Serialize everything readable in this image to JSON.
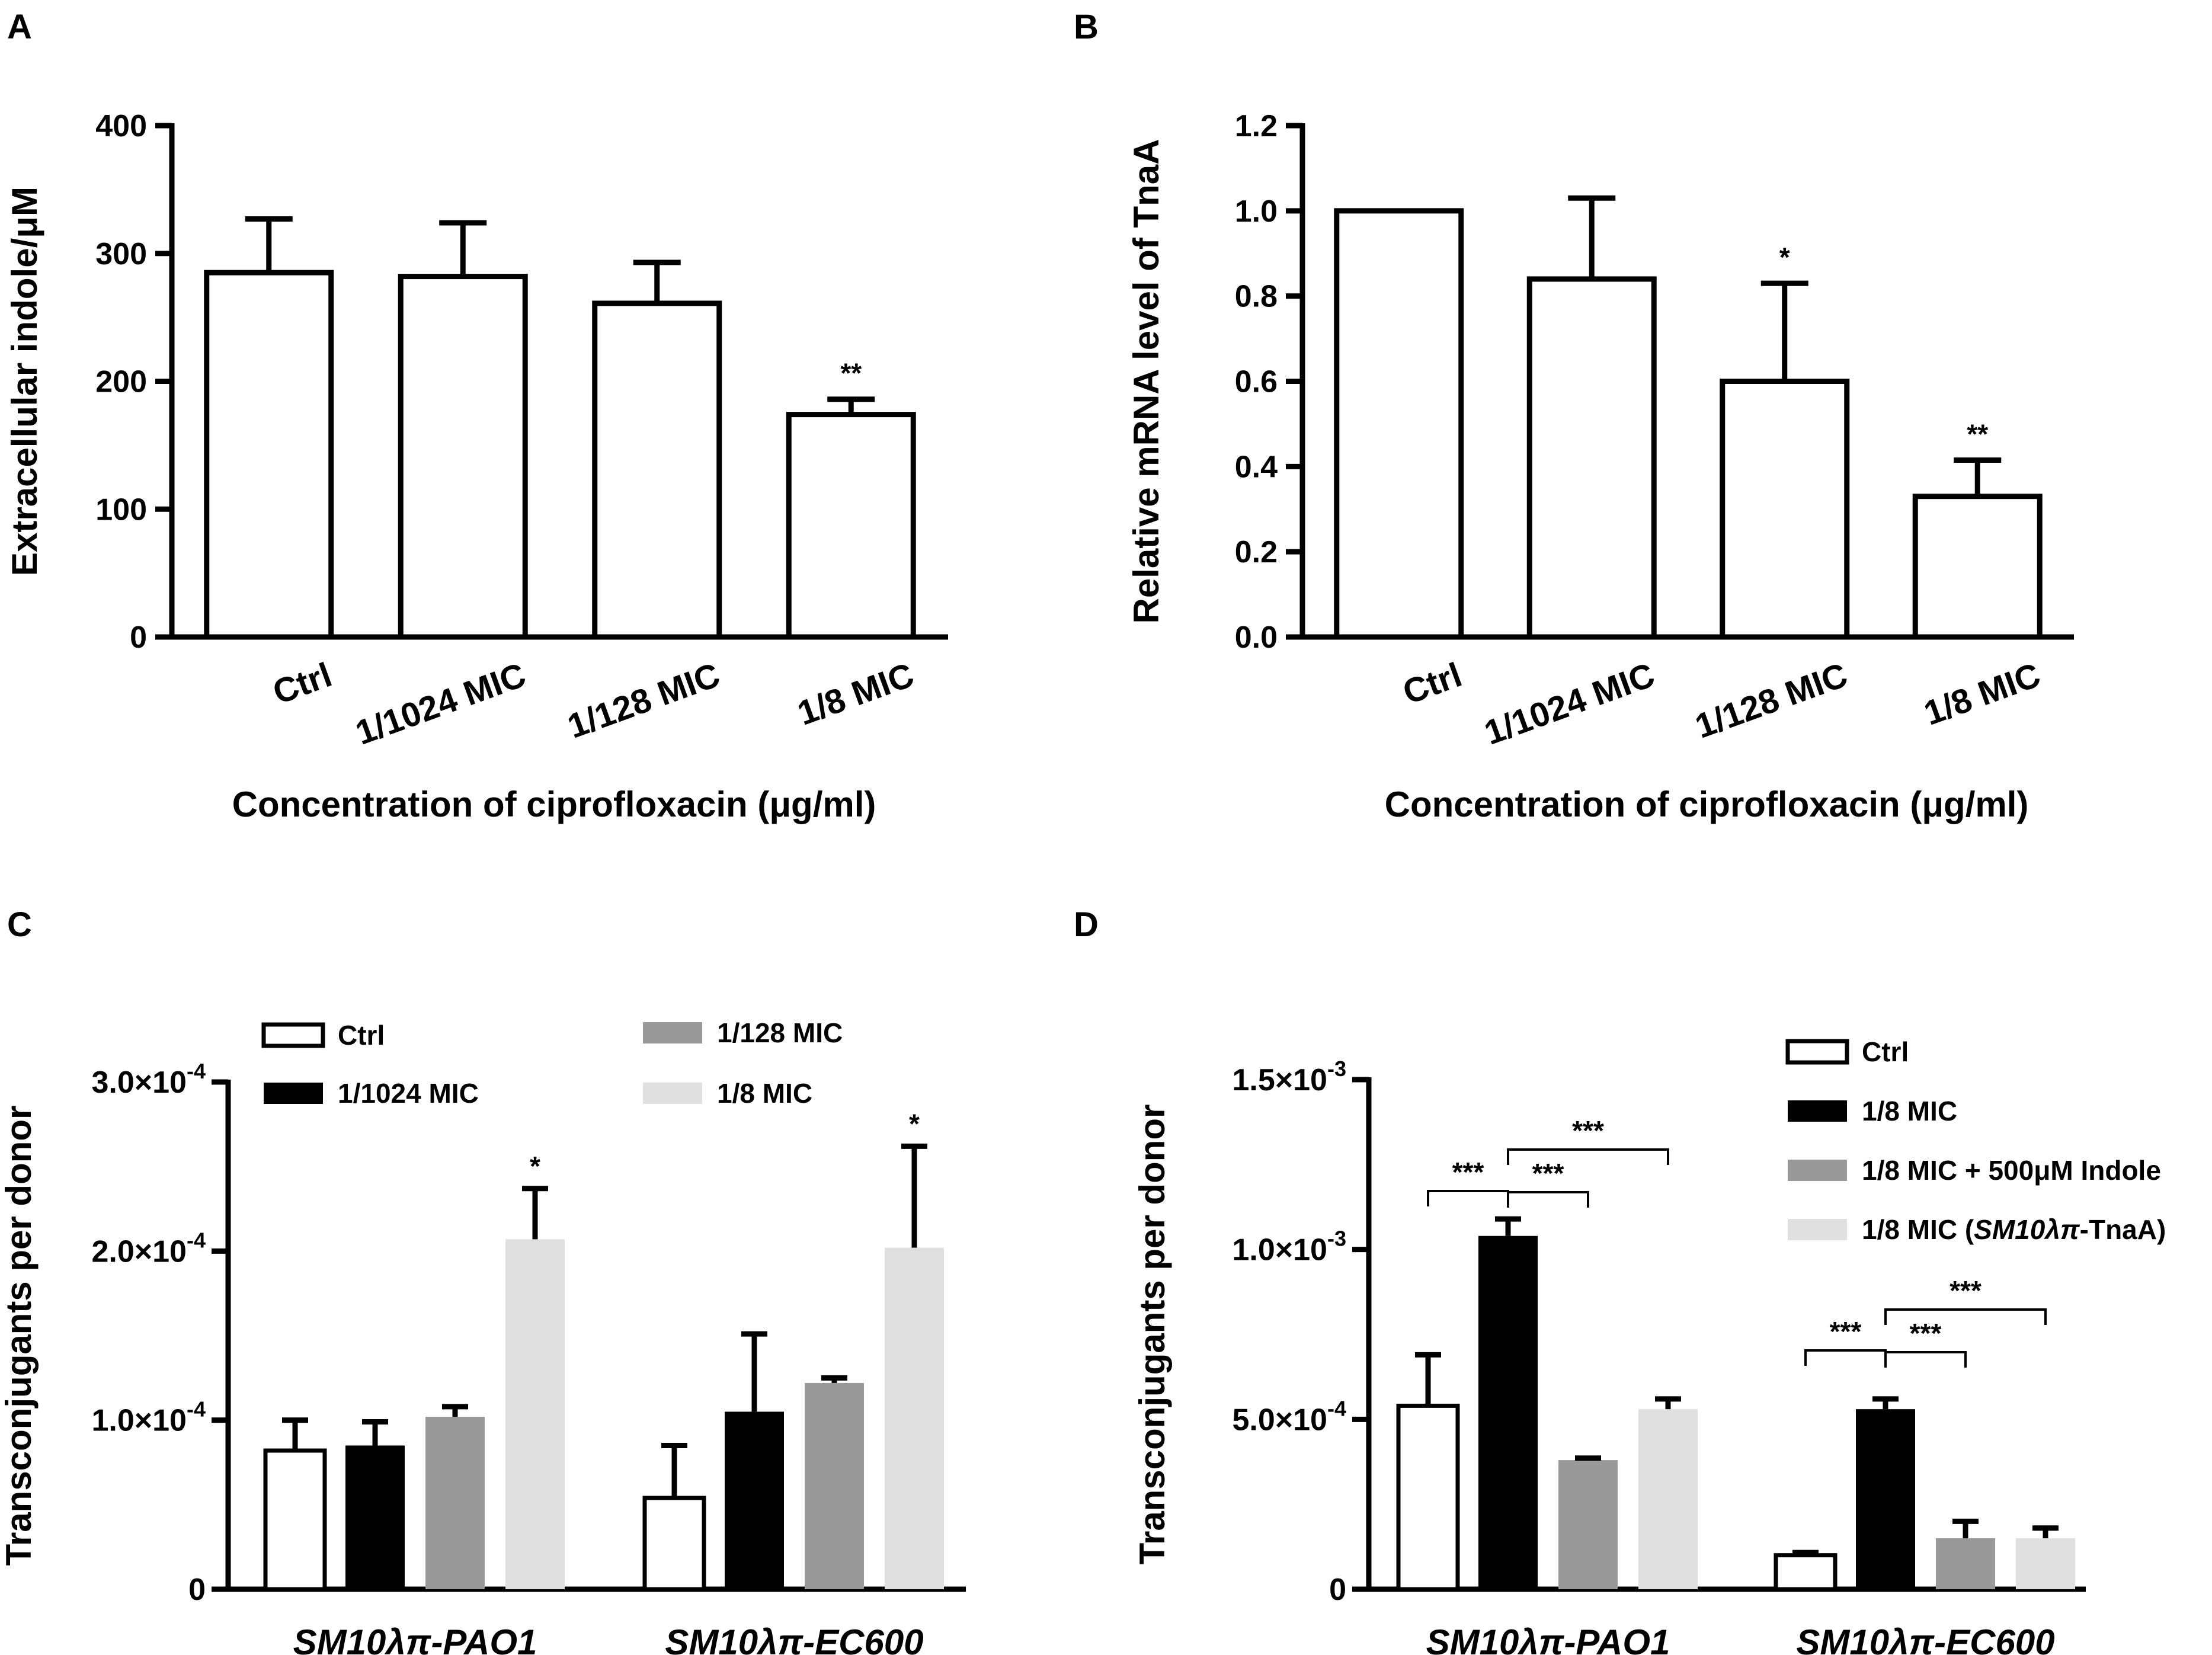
{
  "colors": {
    "ctrl": "#ffffff",
    "black": "#000000",
    "mid_gray": "#999999",
    "light_gray": "#e0e0e0",
    "stroke": "#000000"
  },
  "chart_data": [
    {
      "panel": "A",
      "type": "bar",
      "ylabel": "Extracellular indole/μM",
      "xlabel": "Concentration of ciprofloxacin (μg/ml)",
      "ylim": [
        0,
        400
      ],
      "yticks": [
        "0",
        "100",
        "200",
        "300",
        "400"
      ],
      "categories": [
        "Ctrl",
        "1/1024 MIC",
        "1/128 MIC",
        "1/8 MIC"
      ],
      "values": [
        285,
        282,
        261,
        174
      ],
      "errors": [
        42,
        42,
        32,
        12
      ],
      "significance": [
        "",
        "",
        "",
        "**"
      ]
    },
    {
      "panel": "B",
      "type": "bar",
      "ylabel": "Relative mRNA level of TnaA",
      "xlabel": "Concentration of ciprofloxacin (μg/ml)",
      "ylim": [
        0,
        1.2
      ],
      "yticks": [
        "0.0",
        "0.2",
        "0.4",
        "0.6",
        "0.8",
        "1.0",
        "1.2"
      ],
      "categories": [
        "Ctrl",
        "1/1024 MIC",
        "1/128 MIC",
        "1/8 MIC"
      ],
      "values": [
        1.0,
        0.84,
        0.6,
        0.33
      ],
      "errors": [
        0,
        0.19,
        0.23,
        0.085
      ],
      "significance": [
        "",
        "",
        "*",
        "**"
      ]
    },
    {
      "panel": "C",
      "type": "bar",
      "ylabel": "Transconjugants per donor",
      "ylim": [
        0,
        0.0003
      ],
      "ytick_values": [
        0,
        0.0001,
        0.0002,
        0.0003
      ],
      "ytick_labels": [
        {
          "base": "0",
          "exp": ""
        },
        {
          "base": "1.0×10",
          "exp": "-4"
        },
        {
          "base": "2.0×10",
          "exp": "-4"
        },
        {
          "base": "3.0×10",
          "exp": "-4"
        }
      ],
      "categories": [
        "SM10λπ-PAO1",
        "SM10λπ-EC600"
      ],
      "series": [
        {
          "name": "Ctrl",
          "color": "#ffffff",
          "values": [
            8.2e-05,
            5.4e-05
          ],
          "errors": [
            1.8e-05,
            3.1e-05
          ],
          "significance": [
            "",
            ""
          ]
        },
        {
          "name": "1/1024 MIC",
          "color": "#000000",
          "values": [
            8.5e-05,
            0.000105
          ],
          "errors": [
            1.4e-05,
            4.6e-05
          ],
          "significance": [
            "",
            ""
          ]
        },
        {
          "name": "1/128 MIC",
          "color": "#999999",
          "values": [
            0.000102,
            0.000122
          ],
          "errors": [
            6e-06,
            3e-06
          ],
          "significance": [
            "",
            ""
          ]
        },
        {
          "name": "1/8 MIC",
          "color": "#e0e0e0",
          "values": [
            0.000207,
            0.000202
          ],
          "errors": [
            3e-05,
            6e-05
          ],
          "significance": [
            "*",
            "*"
          ]
        }
      ]
    },
    {
      "panel": "D",
      "type": "bar",
      "ylabel": "Transconjugants per donor",
      "ylim": [
        0,
        0.0015
      ],
      "ytick_values": [
        0,
        0.0005,
        0.001,
        0.0015
      ],
      "ytick_labels": [
        {
          "base": "0",
          "exp": ""
        },
        {
          "base": "5.0×10",
          "exp": "-4"
        },
        {
          "base": "1.0×10",
          "exp": "-3"
        },
        {
          "base": "1.5×10",
          "exp": "-3"
        }
      ],
      "categories": [
        "SM10λπ-PAO1",
        "SM10λπ-EC600"
      ],
      "series": [
        {
          "name": "Ctrl",
          "color": "#ffffff",
          "values": [
            0.00054,
            0.0001
          ],
          "errors": [
            0.00015,
            8e-06
          ]
        },
        {
          "name": "1/8 MIC",
          "color": "#000000",
          "values": [
            0.00104,
            0.00053
          ],
          "errors": [
            5e-05,
            3e-05
          ]
        },
        {
          "name": "1/8 MIC + 500μM Indole",
          "color": "#999999",
          "values": [
            0.00038,
            0.00015
          ],
          "errors": [
            6e-06,
            5e-05
          ]
        },
        {
          "name": "1/8 MIC (SM10λπ-TnaA)",
          "color": "#e0e0e0",
          "values": [
            0.00053,
            0.00015
          ],
          "errors": [
            3e-05,
            3e-05
          ]
        }
      ],
      "legend_parts": {
        "prefix": "1/8 MIC (",
        "italic": "SM10λπ",
        "suffix": "-TnaA)"
      },
      "comparisons": [
        {
          "group": 0,
          "from": 0,
          "to": 1,
          "label": "***"
        },
        {
          "group": 0,
          "from": 1,
          "to": 2,
          "label": "***"
        },
        {
          "group": 0,
          "from": 1,
          "to": 3,
          "label": "***"
        },
        {
          "group": 1,
          "from": 0,
          "to": 1,
          "label": "***"
        },
        {
          "group": 1,
          "from": 1,
          "to": 2,
          "label": "***"
        },
        {
          "group": 1,
          "from": 1,
          "to": 3,
          "label": "***"
        }
      ]
    }
  ]
}
